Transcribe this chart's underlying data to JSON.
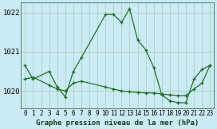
{
  "title": "Graphe pression niveau de la mer (hPa)",
  "background_color": "#caeaf5",
  "grid_color": "#a8cca8",
  "line_color": "#1a6b1a",
  "title_fontsize": 6.5,
  "xlabel_fontsize": 5.5,
  "ylabel_fontsize": 6.5,
  "xlim": [
    -0.5,
    23.5
  ],
  "ylim": [
    1019.55,
    1022.25
  ],
  "yticks": [
    1020,
    1021,
    1022
  ],
  "xticks": [
    0,
    1,
    2,
    3,
    4,
    5,
    6,
    7,
    8,
    9,
    10,
    11,
    12,
    13,
    14,
    15,
    16,
    17,
    18,
    19,
    20,
    21,
    22,
    23
  ],
  "series1_x": [
    0,
    1,
    3,
    4,
    5,
    6,
    7,
    10,
    11,
    12,
    13,
    14,
    15,
    16,
    17,
    18,
    19,
    20,
    21,
    22,
    23
  ],
  "series1_y": [
    1020.65,
    1020.3,
    1020.5,
    1020.1,
    1019.85,
    1020.5,
    1020.85,
    1021.95,
    1021.95,
    1021.75,
    1022.1,
    1021.3,
    1021.05,
    1020.6,
    1019.9,
    1019.75,
    1019.7,
    1019.7,
    1020.3,
    1020.55,
    1020.65
  ],
  "series2_x": [
    0,
    1,
    3,
    4,
    5,
    6,
    7,
    10,
    11,
    12,
    13,
    14,
    15,
    16,
    17,
    18,
    19,
    20,
    21,
    22,
    23
  ],
  "series2_y": [
    1020.3,
    1020.35,
    1020.15,
    1020.05,
    1020.0,
    1020.2,
    1020.25,
    1020.1,
    1020.05,
    1020.0,
    1019.98,
    1019.96,
    1019.95,
    1019.95,
    1019.92,
    1019.9,
    1019.88,
    1019.88,
    1020.05,
    1020.2,
    1020.65
  ]
}
